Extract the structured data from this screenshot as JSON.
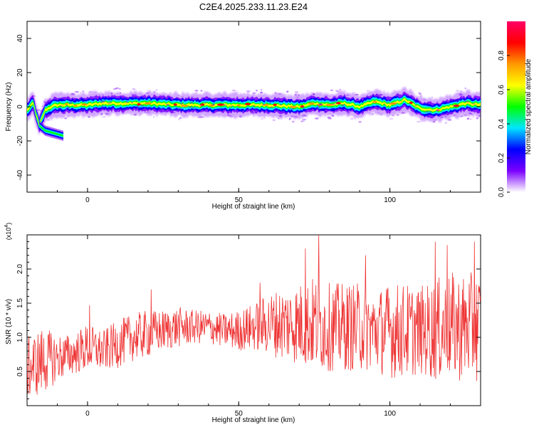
{
  "chart_data": [
    {
      "type": "heatmap",
      "title": "C2E4.2025.233.11.23.E24",
      "xlabel": "Height of straight line (km)",
      "ylabel": "Frequency (Hz)",
      "xlim": [
        -20,
        130
      ],
      "ylim": [
        -50,
        50
      ],
      "xticks": [
        0,
        50,
        100
      ],
      "xtick_labels": [
        "0",
        "50",
        "100"
      ],
      "yticks": [
        40,
        20,
        0,
        -20,
        -40
      ],
      "ytick_labels": [
        "40",
        "20",
        "0",
        "-20",
        "-40"
      ],
      "colorbar": {
        "label": "Normalized spectral amplitude",
        "range": [
          0,
          1
        ],
        "ticks": [
          0.0,
          0.2,
          0.4,
          0.6,
          0.8
        ],
        "tick_labels": [
          "0.0",
          "0.2",
          "0.4",
          "0.6",
          "0.8"
        ],
        "colormap": [
          "#ffffff",
          "#7b00ff",
          "#0000ff",
          "#00e5ff",
          "#00ff00",
          "#ffff00",
          "#ff9900",
          "#ff0000",
          "#ff0066"
        ]
      },
      "ridge": {
        "x": [
          -20,
          -18,
          -16,
          -14,
          -12,
          -10,
          -5,
          0,
          5,
          10,
          20,
          30,
          40,
          50,
          60,
          70,
          75,
          80,
          85,
          90,
          95,
          100,
          105,
          110,
          115,
          120,
          125,
          130
        ],
        "y": [
          -2,
          2,
          -11,
          -2,
          0,
          1,
          1,
          1,
          2,
          2,
          2,
          1,
          1,
          1,
          1,
          0,
          2,
          1,
          2,
          0,
          3,
          1,
          4,
          -1,
          -2,
          0,
          2,
          1
        ],
        "secondary_x": [
          -16,
          -14,
          -12,
          -10,
          -8
        ],
        "secondary_y": [
          -11,
          -14,
          -15,
          -16,
          -17
        ]
      }
    },
    {
      "type": "line",
      "title": "",
      "xlabel": "Height of straight line (km)",
      "ylabel": "SNR (10 * v/v)",
      "y_multiplier": "(x10",
      "y_multiplier_exp": "4",
      "y_multiplier_close": ")",
      "xlim": [
        -20,
        130
      ],
      "ylim": [
        0,
        2.5
      ],
      "xticks": [
        0,
        50,
        100
      ],
      "xtick_labels": [
        "0",
        "50",
        "100"
      ],
      "yticks": [
        0.5,
        1.0,
        1.5,
        2.0
      ],
      "ytick_labels": [
        "0.5",
        "1.0",
        "1.5",
        "2.0"
      ],
      "series": [
        {
          "name": "SNR",
          "color": "#ee3333",
          "x": [
            -20,
            -15,
            -10,
            -5,
            0,
            5,
            10,
            15,
            20,
            25,
            30,
            35,
            40,
            45,
            50,
            55,
            60,
            65,
            70,
            75,
            80,
            85,
            90,
            95,
            100,
            105,
            110,
            115,
            120,
            125,
            130
          ],
          "mean": [
            0.55,
            0.65,
            0.7,
            0.75,
            0.85,
            0.8,
            0.9,
            1.0,
            1.05,
            1.1,
            1.15,
            1.15,
            1.15,
            1.1,
            1.1,
            1.15,
            1.2,
            1.2,
            1.2,
            1.2,
            1.15,
            1.15,
            1.15,
            1.1,
            1.1,
            1.1,
            1.1,
            1.1,
            1.15,
            1.15,
            1.15
          ],
          "amplitude": [
            0.45,
            0.5,
            0.35,
            0.3,
            0.35,
            0.3,
            0.35,
            0.35,
            0.35,
            0.3,
            0.3,
            0.25,
            0.25,
            0.25,
            0.3,
            0.35,
            0.45,
            0.55,
            0.6,
            0.7,
            0.65,
            0.65,
            0.65,
            0.6,
            0.7,
            0.7,
            0.65,
            0.75,
            0.8,
            0.8,
            0.8
          ],
          "peaks": [
            {
              "x": 0.7,
              "y": 1.47
            },
            {
              "x": 21,
              "y": 1.7
            },
            {
              "x": 57,
              "y": 1.8
            },
            {
              "x": 76.5,
              "y": 2.5
            },
            {
              "x": 72,
              "y": 2.3
            },
            {
              "x": 92,
              "y": 2.2
            },
            {
              "x": 115,
              "y": 2.4
            },
            {
              "x": 119,
              "y": 2.35
            },
            {
              "x": 128,
              "y": 2.4
            }
          ]
        }
      ]
    }
  ]
}
